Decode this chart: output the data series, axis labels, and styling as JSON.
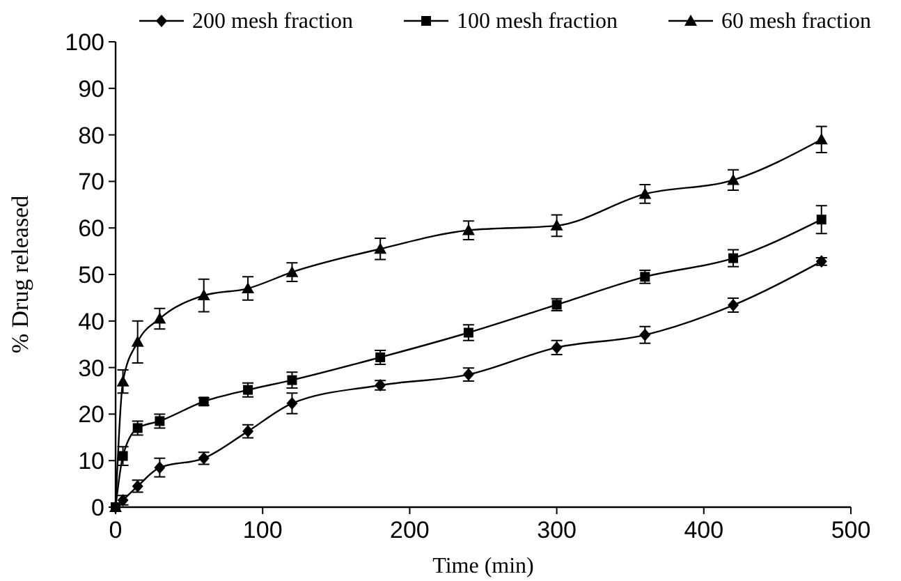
{
  "chart_data": {
    "type": "line",
    "xlabel": "Time (min)",
    "ylabel": "% Drug released",
    "x": [
      0,
      5,
      15,
      30,
      60,
      90,
      120,
      180,
      240,
      300,
      360,
      420,
      480
    ],
    "series": [
      {
        "name": "200 mesh fraction",
        "color": "#000000",
        "marker": "diamond",
        "values": [
          0,
          1.5,
          4.5,
          8.5,
          10.5,
          16.3,
          22.3,
          26.2,
          28.5,
          34.3,
          37,
          43.4,
          52.8
        ],
        "errors": [
          null,
          1,
          1.3,
          2,
          1.3,
          1.4,
          2.2,
          1,
          1.4,
          1.5,
          1.8,
          1.5,
          0.8
        ]
      },
      {
        "name": "100 mesh fraction",
        "color": "#000000",
        "marker": "square",
        "values": [
          0,
          11,
          17,
          18.5,
          22.7,
          25.2,
          27.3,
          32.2,
          37.5,
          43.5,
          49.5,
          53.5,
          61.8
        ],
        "errors": [
          null,
          2,
          1.5,
          1.5,
          0.8,
          1.5,
          1.7,
          1.5,
          1.7,
          1.3,
          1.4,
          1.8,
          3
        ]
      },
      {
        "name": "60 mesh fraction",
        "color": "#000000",
        "marker": "triangle",
        "values": [
          0,
          27,
          35.5,
          40.5,
          45.5,
          47,
          50.5,
          55.5,
          59.5,
          60.5,
          67.3,
          70.3,
          79
        ],
        "errors": [
          null,
          2.5,
          4.5,
          2.2,
          3.5,
          2.5,
          2,
          2.3,
          2,
          2.3,
          2,
          2.2,
          2.8
        ]
      }
    ],
    "xlim": [
      0,
      500
    ],
    "xticks": [
      0,
      100,
      200,
      300,
      400,
      500
    ],
    "ylim": [
      0,
      100
    ],
    "yticks": [
      0,
      10,
      20,
      30,
      40,
      50,
      60,
      70,
      80,
      90,
      100
    ],
    "grid": false,
    "legend": "top",
    "line_style": "solid"
  }
}
